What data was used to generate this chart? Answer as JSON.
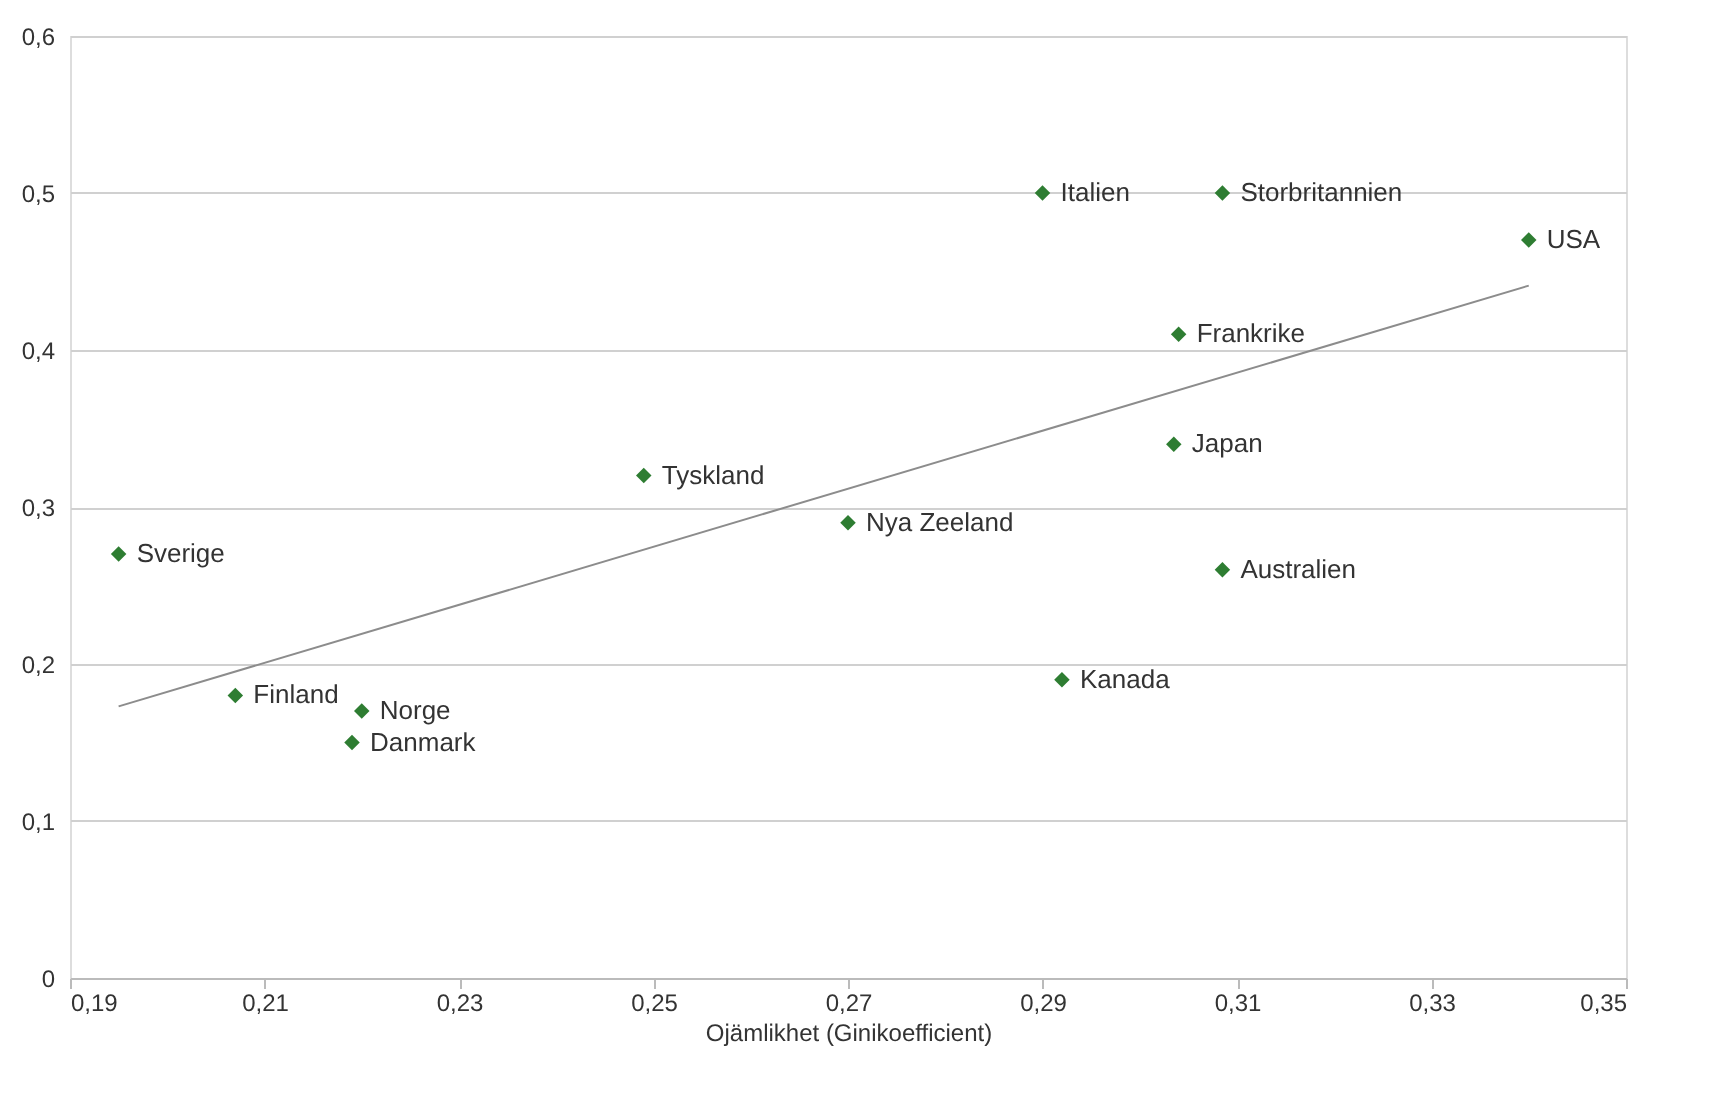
{
  "chart_data": {
    "type": "scatter",
    "xlabel": "Ojämlikhet (Ginikoefficient)",
    "xlim": [
      0.19,
      0.35
    ],
    "ylim": [
      0,
      0.6
    ],
    "xticks": [
      {
        "value": 0.19,
        "label": "0,19"
      },
      {
        "value": 0.21,
        "label": "0,21"
      },
      {
        "value": 0.23,
        "label": "0,23"
      },
      {
        "value": 0.25,
        "label": "0,25"
      },
      {
        "value": 0.27,
        "label": "0,27"
      },
      {
        "value": 0.29,
        "label": "0,29"
      },
      {
        "value": 0.31,
        "label": "0,31"
      },
      {
        "value": 0.33,
        "label": "0,33"
      },
      {
        "value": 0.35,
        "label": "0,35"
      }
    ],
    "yticks": [
      {
        "value": 0,
        "label": "0"
      },
      {
        "value": 0.1,
        "label": "0,1"
      },
      {
        "value": 0.2,
        "label": "0,2"
      },
      {
        "value": 0.3,
        "label": "0,3"
      },
      {
        "value": 0.4,
        "label": "0,4"
      },
      {
        "value": 0.5,
        "label": "0,5"
      },
      {
        "value": 0.6,
        "label": "0,6"
      }
    ],
    "grid": "y",
    "series": [
      {
        "color": "#2e7d32",
        "marker": "diamond",
        "x": [
          0.195,
          0.207,
          0.22,
          0.219,
          0.249,
          0.27,
          0.29,
          0.292,
          0.3085,
          0.304,
          0.3035,
          0.3085,
          0.34
        ],
        "values": [
          0.27,
          0.18,
          0.17,
          0.15,
          0.32,
          0.29,
          0.5,
          0.19,
          0.5,
          0.41,
          0.34,
          0.26,
          0.47
        ]
      },
      {
        "type": "line",
        "color": "#8c8c8c",
        "marker": "none",
        "line_style": "solid",
        "x": [
          0.195,
          0.34
        ],
        "values": [
          0.173,
          0.441
        ]
      }
    ],
    "annotations": [
      {
        "text": "Sverige",
        "x": 0.195,
        "y": 0.27
      },
      {
        "text": "Finland",
        "x": 0.207,
        "y": 0.18
      },
      {
        "text": "Norge",
        "x": 0.22,
        "y": 0.17
      },
      {
        "text": "Danmark",
        "x": 0.219,
        "y": 0.15
      },
      {
        "text": "Tyskland",
        "x": 0.249,
        "y": 0.32
      },
      {
        "text": "Nya Zeeland",
        "x": 0.27,
        "y": 0.29
      },
      {
        "text": "Italien",
        "x": 0.29,
        "y": 0.5
      },
      {
        "text": "Kanada",
        "x": 0.292,
        "y": 0.19
      },
      {
        "text": "Storbritannien",
        "x": 0.3085,
        "y": 0.5
      },
      {
        "text": "Frankrike",
        "x": 0.304,
        "y": 0.41
      },
      {
        "text": "Japan",
        "x": 0.3035,
        "y": 0.34
      },
      {
        "text": "Australien",
        "x": 0.3085,
        "y": 0.26
      },
      {
        "text": "USA",
        "x": 0.34,
        "y": 0.47
      }
    ]
  }
}
